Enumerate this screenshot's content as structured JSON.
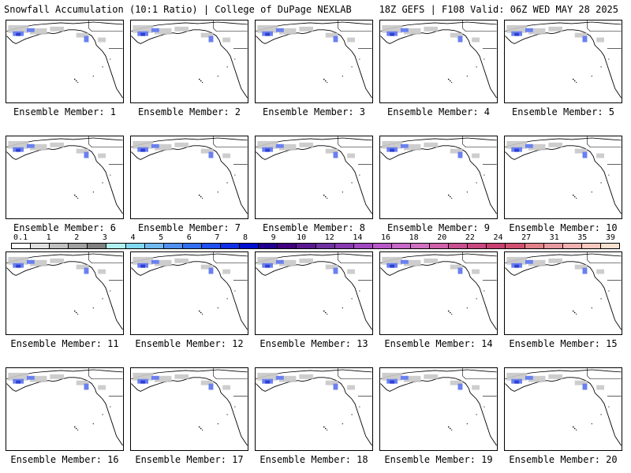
{
  "header": {
    "title_left": "Snowfall Accumulation (10:1 Ratio) | College of DuPage NEXLAB",
    "title_right": "18Z GEFS | F108 Valid: 06Z WED MAY 28 2025"
  },
  "panels": [
    {
      "label": "Ensemble Member: 1"
    },
    {
      "label": "Ensemble Member: 2"
    },
    {
      "label": "Ensemble Member: 3"
    },
    {
      "label": "Ensemble Member: 4"
    },
    {
      "label": "Ensemble Member: 5"
    },
    {
      "label": "Ensemble Member: 6"
    },
    {
      "label": "Ensemble Member: 7"
    },
    {
      "label": "Ensemble Member: 8"
    },
    {
      "label": "Ensemble Member: 9"
    },
    {
      "label": "Ensemble Member: 10"
    },
    {
      "label": "Ensemble Member: 11"
    },
    {
      "label": "Ensemble Member: 12"
    },
    {
      "label": "Ensemble Member: 13"
    },
    {
      "label": "Ensemble Member: 14"
    },
    {
      "label": "Ensemble Member: 15"
    },
    {
      "label": "Ensemble Member: 16"
    },
    {
      "label": "Ensemble Member: 17"
    },
    {
      "label": "Ensemble Member: 18"
    },
    {
      "label": "Ensemble Member: 19"
    },
    {
      "label": "Ensemble Member: 20"
    }
  ],
  "colorbar": {
    "labels": [
      "0.1",
      "1",
      "2",
      "3",
      "4",
      "5",
      "6",
      "7",
      "8",
      "9",
      "10",
      "12",
      "14",
      "16",
      "18",
      "20",
      "22",
      "24",
      "27",
      "31",
      "35",
      "39"
    ],
    "colors": [
      "#ffffff",
      "#e0e0e0",
      "#c0c0c0",
      "#a0a0a0",
      "#808080",
      "#b0f0f0",
      "#80d8f0",
      "#70b8f0",
      "#5090f0",
      "#3070f0",
      "#2050f0",
      "#1030e8",
      "#0010d0",
      "#200090",
      "#400080",
      "#5a1890",
      "#7030a0",
      "#8838b0",
      "#a048c0",
      "#b858c8",
      "#c868c8",
      "#d070c0",
      "#d060a8",
      "#c85090",
      "#c84880",
      "#c84070",
      "#d05070",
      "#e08088",
      "#e898a0",
      "#f0b0b0",
      "#f8c8c0",
      "#f8e0d0"
    ]
  }
}
